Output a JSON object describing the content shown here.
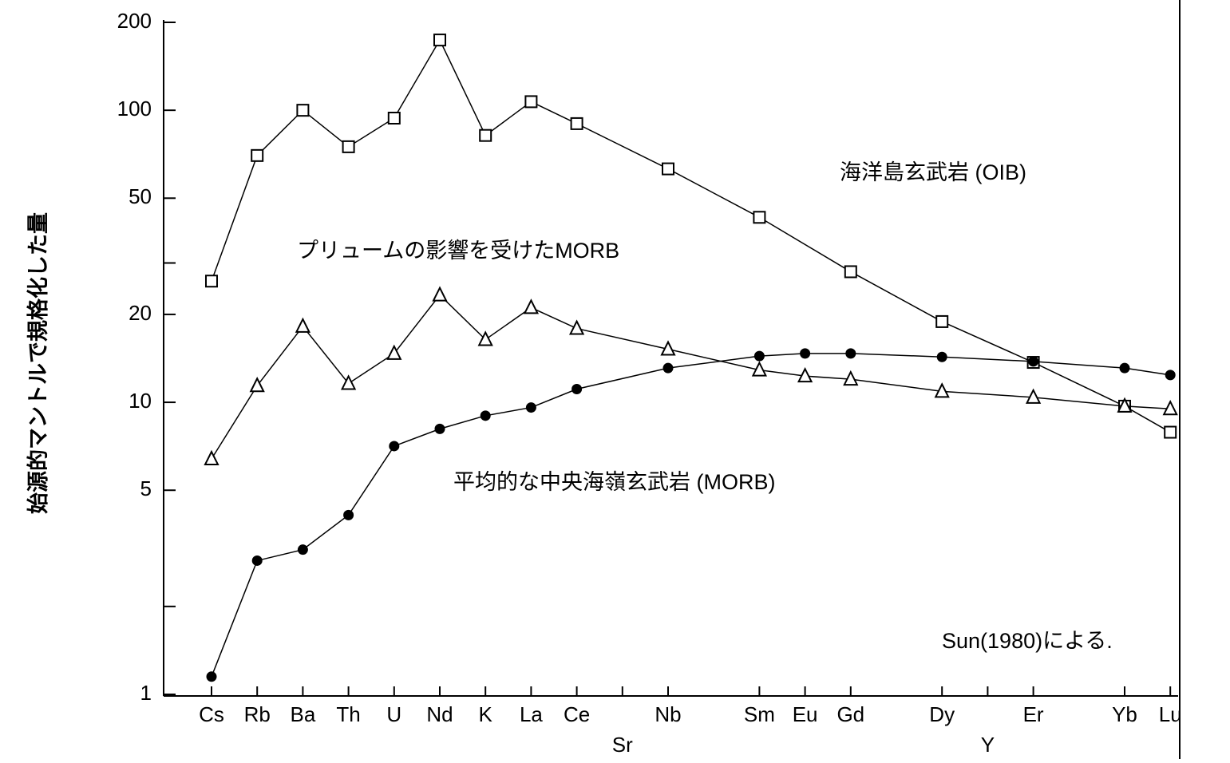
{
  "chart_data": {
    "type": "line",
    "ylabel": "始源的マントルで規格化した量",
    "categories": [
      "Cs",
      "Rb",
      "Ba",
      "Th",
      "U",
      "Nd",
      "K",
      "La",
      "Ce",
      "Sr",
      "Nb",
      null,
      "Sm",
      "Eu",
      "Gd",
      null,
      "Dy",
      "Y",
      "Er",
      null,
      "Yb",
      "Lu"
    ],
    "staggered_categories": [
      9,
      17
    ],
    "log_scale": true,
    "connect_nulls": true,
    "ylim": [
      1,
      200
    ],
    "yticks": [
      1,
      5,
      10,
      20,
      50,
      100,
      200
    ],
    "yminorticks": [
      2,
      30
    ],
    "series": [
      {
        "name": "海洋島玄武岩 (OIB)",
        "color": "#000000",
        "marker": "square",
        "values": [
          26,
          70,
          100,
          75,
          94,
          174,
          82,
          107,
          90,
          null,
          63,
          null,
          43,
          null,
          28,
          null,
          18.9,
          null,
          13.7,
          null,
          9.7,
          7.9
        ]
      },
      {
        "name": "プリュームの影響を受けたMORB",
        "color": "#000000",
        "marker": "triangle",
        "values": [
          6.4,
          11.4,
          18.2,
          11.6,
          14.7,
          23.3,
          16.4,
          21.1,
          17.9,
          null,
          15.2,
          null,
          12.9,
          12.3,
          12.0,
          null,
          10.9,
          null,
          10.4,
          null,
          9.7,
          9.5
        ]
      },
      {
        "name": "平均的な中央海嶺玄武岩 (MORB)",
        "color": "#000000",
        "marker": "circle",
        "values": [
          1.15,
          2.87,
          3.13,
          4.11,
          7.08,
          8.11,
          9.0,
          9.6,
          11.1,
          null,
          13.1,
          null,
          14.4,
          14.7,
          14.7,
          null,
          14.3,
          null,
          13.8,
          null,
          13.1,
          12.4
        ]
      }
    ],
    "annotations": [
      "Sun(1980)による."
    ]
  }
}
